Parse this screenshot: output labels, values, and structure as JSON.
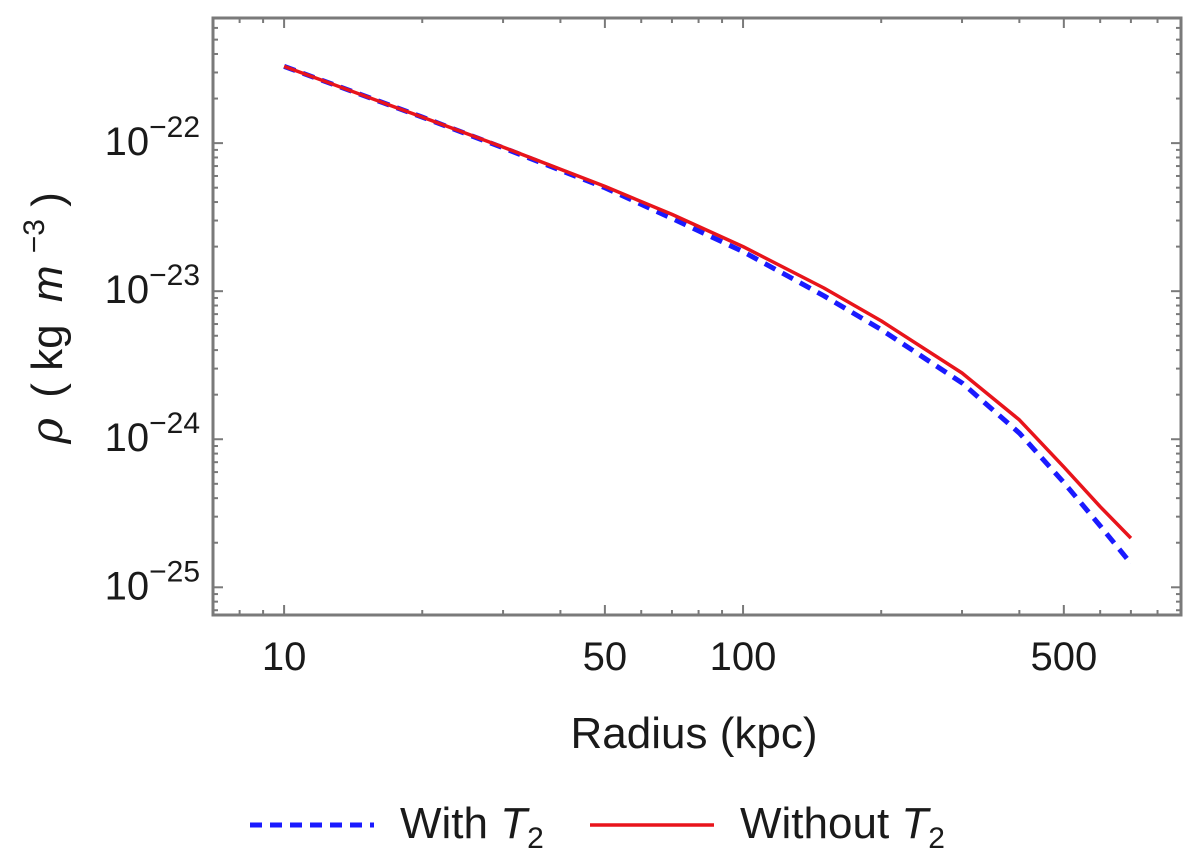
{
  "chart_data": {
    "type": "line",
    "title": "",
    "xlabel": "Radius (kpc)",
    "ylabel": {
      "symbol": "ρ",
      "open": "(",
      "unit_kg": "kg",
      "unit_m": "m",
      "exponent": "−3",
      "close": ")"
    },
    "xscale": "log",
    "yscale": "log",
    "xlim": [
      7,
      900
    ],
    "ylim": [
      6.5e-26,
      7e-22
    ],
    "xticks": [
      {
        "value": 10,
        "label": "10"
      },
      {
        "value": 50,
        "label": "50"
      },
      {
        "value": 100,
        "label": "100"
      },
      {
        "value": 500,
        "label": "500"
      }
    ],
    "yticks": [
      {
        "value": 1e-22,
        "base": "10",
        "exp": "−22"
      },
      {
        "value": 1e-23,
        "base": "10",
        "exp": "−23"
      },
      {
        "value": 1e-24,
        "base": "10",
        "exp": "−24"
      },
      {
        "value": 1e-25,
        "base": "10",
        "exp": "−25"
      }
    ],
    "grid": false,
    "legend_position": "bottom",
    "series": [
      {
        "name": "With T2",
        "label_prefix": "With ",
        "label_var": "T",
        "label_sub": "2",
        "color": "#1a1aff",
        "style": "dashed",
        "points": [
          [
            10,
            3.3e-22
          ],
          [
            20,
            1.5e-22
          ],
          [
            30,
            9.3e-23
          ],
          [
            50,
            5e-23
          ],
          [
            70,
            3.1e-23
          ],
          [
            100,
            1.85e-23
          ],
          [
            150,
            9.3e-24
          ],
          [
            200,
            5.5e-24
          ],
          [
            300,
            2.4e-24
          ],
          [
            400,
            1.1e-24
          ],
          [
            500,
            5.1e-25
          ],
          [
            600,
            2.6e-25
          ],
          [
            700,
            1.45e-25
          ]
        ]
      },
      {
        "name": "Without T2",
        "label_prefix": "Without ",
        "label_var": "T",
        "label_sub": "2",
        "color": "#e8141b",
        "style": "solid",
        "points": [
          [
            10,
            3.3e-22
          ],
          [
            20,
            1.5e-22
          ],
          [
            30,
            9.4e-23
          ],
          [
            50,
            5.1e-23
          ],
          [
            70,
            3.3e-23
          ],
          [
            100,
            2e-23
          ],
          [
            150,
            1.05e-23
          ],
          [
            200,
            6.3e-24
          ],
          [
            300,
            2.8e-24
          ],
          [
            400,
            1.35e-24
          ],
          [
            500,
            6.5e-25
          ],
          [
            600,
            3.5e-25
          ],
          [
            700,
            2.15e-25
          ]
        ]
      }
    ]
  }
}
